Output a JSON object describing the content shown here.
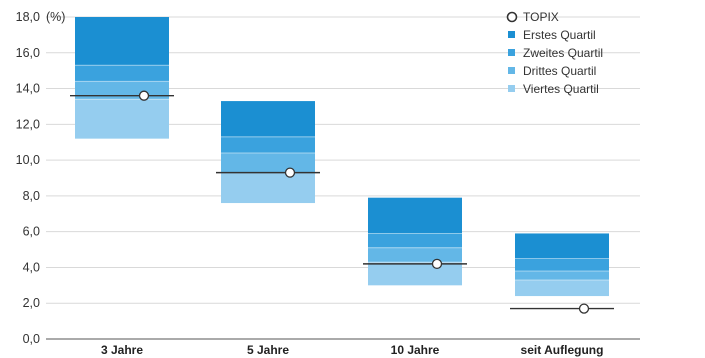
{
  "chart_data": {
    "type": "bar",
    "title": "",
    "xlabel": "",
    "ylabel": "",
    "unit_label": "(%)",
    "ylim": [
      0,
      18
    ],
    "yticks": [
      "0,0",
      "2,0",
      "4,0",
      "6,0",
      "8,0",
      "10,0",
      "12,0",
      "14,0",
      "16,0",
      "18,0"
    ],
    "grid": true,
    "legend_position": "top-right",
    "categories": [
      "3 Jahre",
      "5 Jahre",
      "10 Jahre",
      "seit Auflegung"
    ],
    "series": [
      {
        "name": "Erstes Quartil",
        "color": "#1b8fd2",
        "bounds": [
          [
            15.3,
            18.0
          ],
          [
            11.3,
            13.3
          ],
          [
            5.9,
            7.9
          ],
          [
            4.5,
            5.9
          ]
        ]
      },
      {
        "name": "Zweites Quartil",
        "color": "#3aa2de",
        "bounds": [
          [
            14.4,
            15.3
          ],
          [
            10.4,
            11.3
          ],
          [
            5.1,
            5.9
          ],
          [
            3.8,
            4.5
          ]
        ]
      },
      {
        "name": "Drittes Quartil",
        "color": "#63b7e7",
        "bounds": [
          [
            13.4,
            14.4
          ],
          [
            9.3,
            10.4
          ],
          [
            4.3,
            5.1
          ],
          [
            3.3,
            3.8
          ]
        ]
      },
      {
        "name": "Viertes Quartil",
        "color": "#95cdef",
        "bounds": [
          [
            11.2,
            13.4
          ],
          [
            7.6,
            9.3
          ],
          [
            3.0,
            4.3
          ],
          [
            2.4,
            3.3
          ]
        ]
      }
    ],
    "benchmark": {
      "name": "TOPIX",
      "values": [
        13.6,
        9.3,
        4.2,
        1.7
      ]
    }
  }
}
